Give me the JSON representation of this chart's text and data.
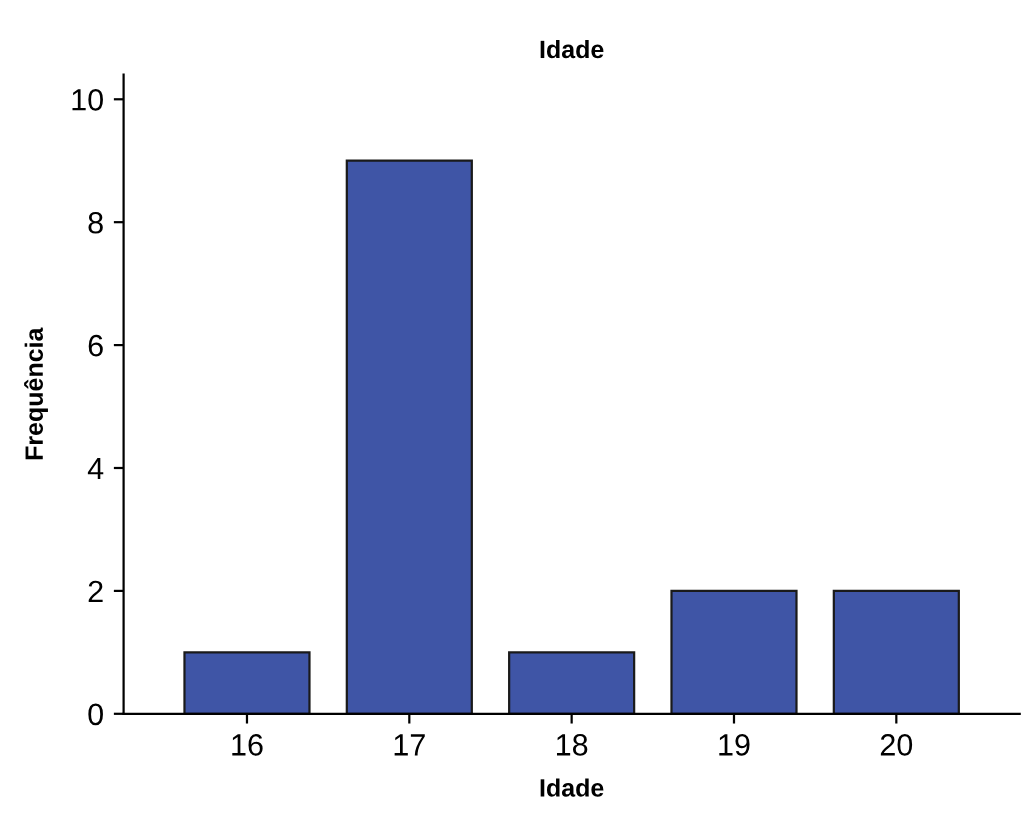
{
  "chart_data": {
    "type": "bar",
    "title": "Idade",
    "xlabel": "Idade",
    "ylabel": "Frequência",
    "categories": [
      "16",
      "17",
      "18",
      "19",
      "20"
    ],
    "series": [
      {
        "color": "#3f55a6",
        "values": [
          1,
          9,
          1,
          2,
          2
        ]
      }
    ],
    "ylim": [
      0,
      10.4
    ],
    "yticks": [
      0,
      2,
      4,
      6,
      8,
      10
    ],
    "grid": false,
    "legend": false
  }
}
